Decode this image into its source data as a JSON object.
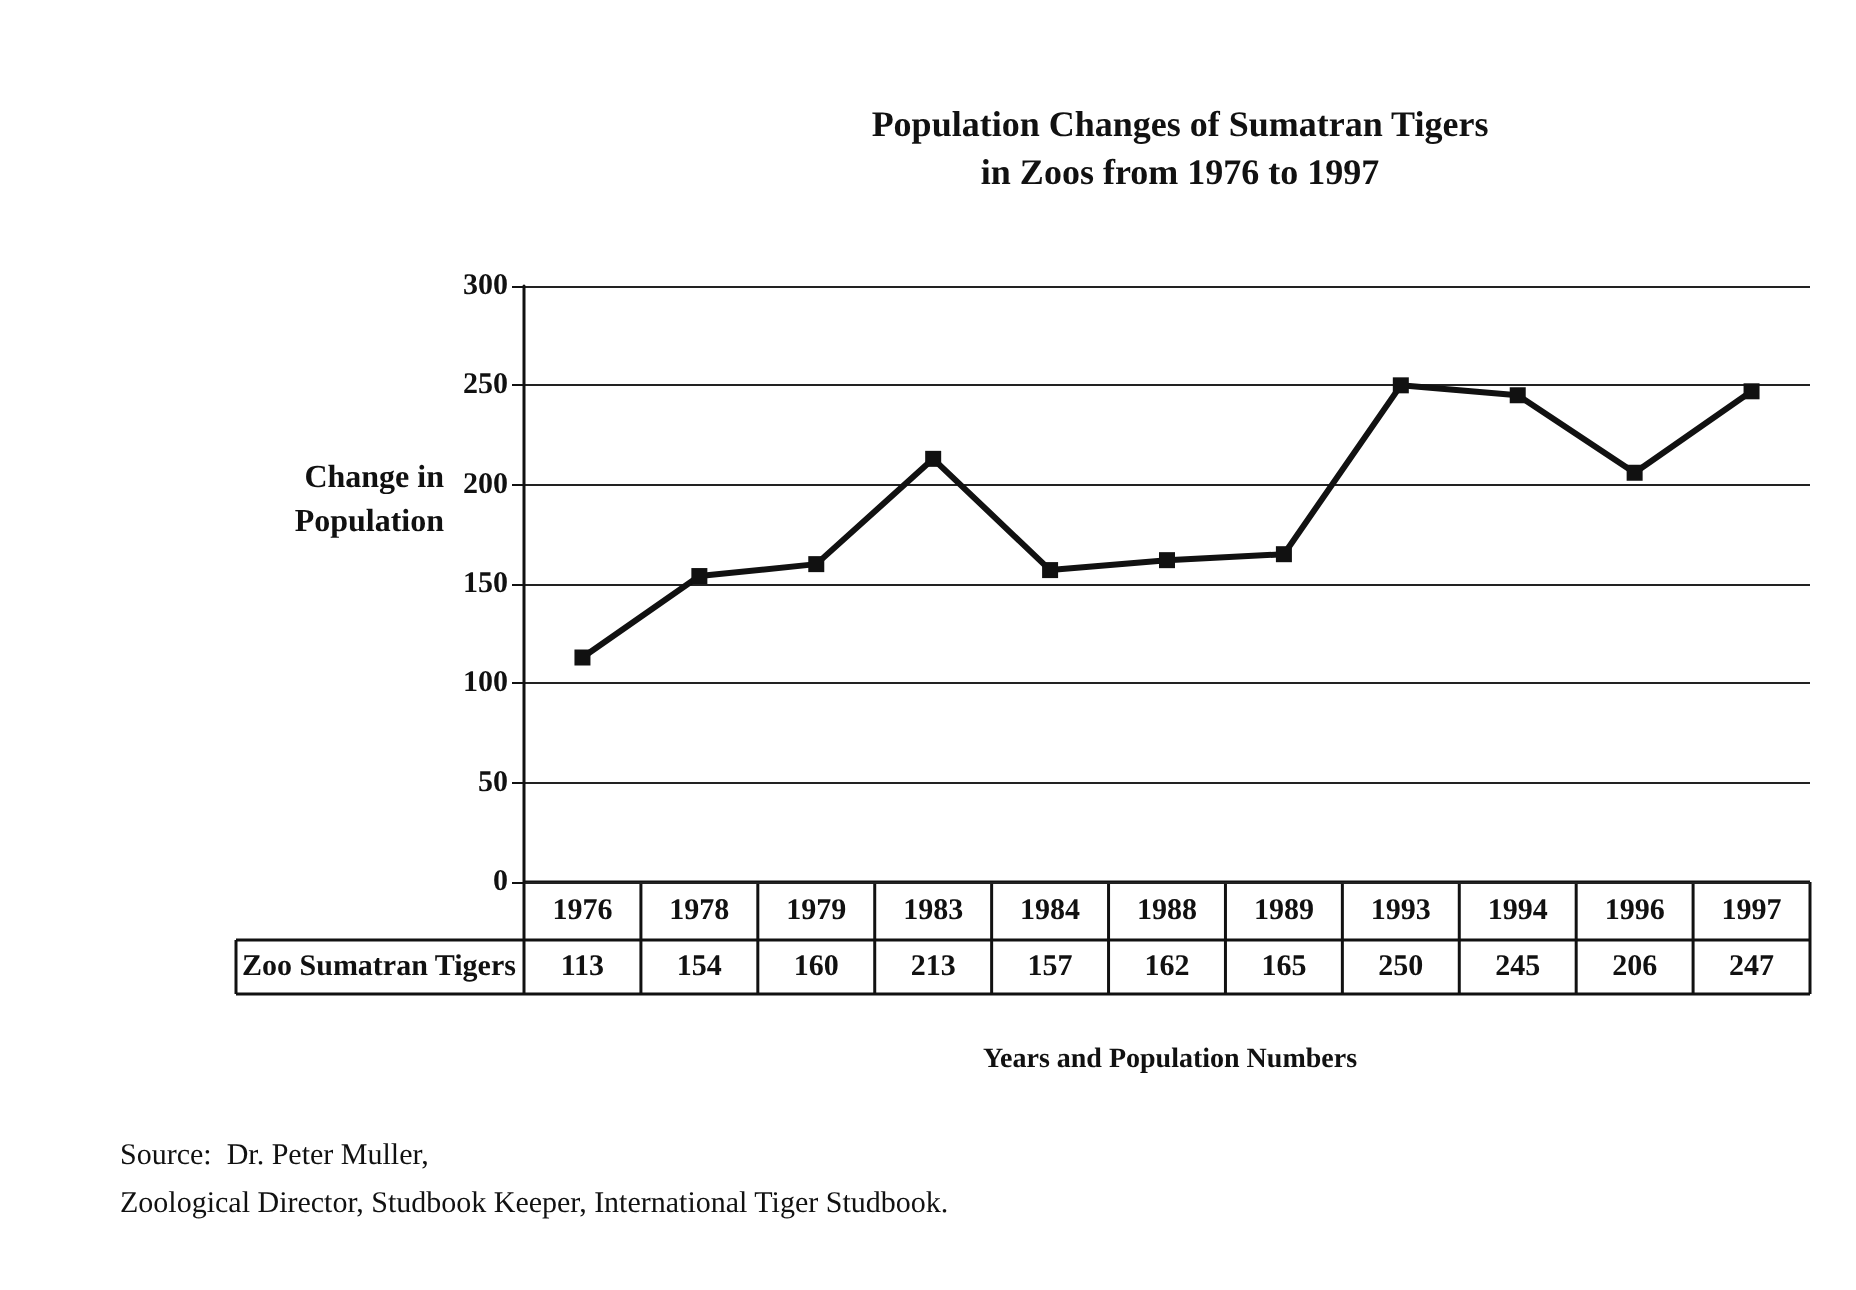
{
  "chart_data": {
    "type": "line",
    "title": "Population Changes of Sumatran Tigers\nin Zoos from 1976 to 1997",
    "xlabel": "Years and Population Numbers",
    "ylabel": "Change in\nPopulation",
    "categories": [
      "1976",
      "1978",
      "1979",
      "1983",
      "1984",
      "1988",
      "1989",
      "1993",
      "1994",
      "1996",
      "1997"
    ],
    "series": [
      {
        "name": "Zoo Sumatran Tigers",
        "color": "#111111",
        "values": [
          113,
          154,
          160,
          213,
          157,
          162,
          165,
          250,
          245,
          206,
          247
        ]
      }
    ],
    "ylim": [
      0,
      300
    ],
    "yticks": [
      0,
      50,
      100,
      150,
      200,
      250,
      300
    ],
    "grid": "y",
    "marker": "square",
    "line_style": "solid",
    "data_labels": true,
    "annotations": [
      "Source:  Dr. Peter Muller,",
      "Zoological Director, Studbook Keeper, International Tiger Studbook."
    ]
  }
}
